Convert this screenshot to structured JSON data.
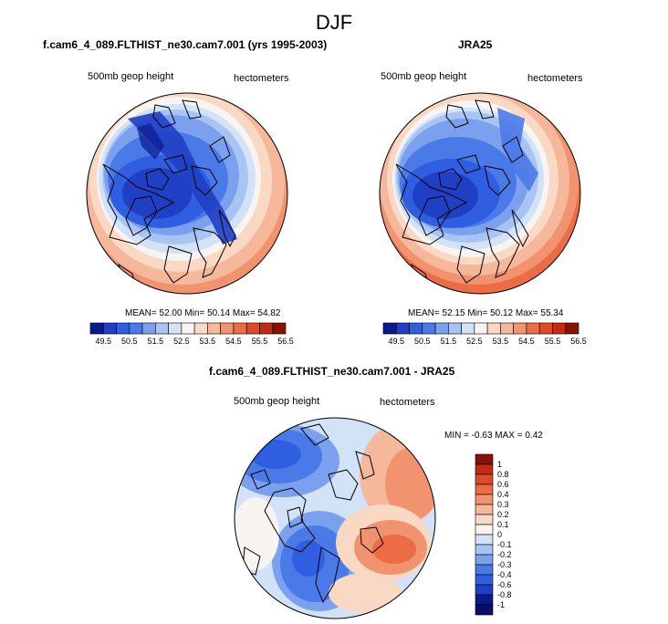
{
  "season": "DJF",
  "panels": [
    {
      "title": "f.cam6_4_089.FLTHIST_ne30.cam7.001 (yrs 1995-2003)",
      "var_label": "500mb geop height",
      "units": "hectometers",
      "stats": {
        "mean_label": "MEAN=",
        "mean": "52.00",
        "min_label": "Min=",
        "min": "50.14",
        "max_label": "Max=",
        "max": "54.82"
      }
    },
    {
      "title": "JRA25",
      "var_label": "500mb geop height",
      "units": "hectometers",
      "stats": {
        "mean_label": "MEAN=",
        "mean": "52.15",
        "min_label": "Min=",
        "min": "50.12",
        "max_label": "Max=",
        "max": "55.34"
      }
    },
    {
      "title": "f.cam6_4_089.FLTHIST_ne30.cam7.001 - JRA25",
      "var_label": "500mb geop height",
      "units": "hectometers",
      "stats_text": "MIN =  -0.63 MAX =   0.42"
    }
  ],
  "colorbar_abs": {
    "ticks": [
      "49.5",
      "50.5",
      "51.5",
      "52.5",
      "53.5",
      "54.5",
      "55.5",
      "56.5"
    ],
    "colors": [
      "#0a1a8c",
      "#1f3fc4",
      "#2f5ee0",
      "#4a7ae8",
      "#7aa0ee",
      "#a8c4f2",
      "#d2e2f7",
      "#f7f4f2",
      "#f9d8c4",
      "#f6b89a",
      "#f29370",
      "#ec6c46",
      "#e04a26",
      "#c42c12",
      "#8a1204"
    ]
  },
  "colorbar_diff": {
    "ticks": [
      "1",
      "0.8",
      "0.6",
      "0.4",
      "0.3",
      "0.2",
      "0.1",
      "0",
      "-0.1",
      "-0.2",
      "-0.3",
      "-0.4",
      "-0.6",
      "-0.8",
      "-1"
    ],
    "colors": [
      "#8a1204",
      "#c42c12",
      "#e04a26",
      "#ec6c46",
      "#f29370",
      "#f6b89a",
      "#f9d8c4",
      "#f7f4f2",
      "#d2e2f7",
      "#a8c4f2",
      "#7aa0ee",
      "#4a7ae8",
      "#2f5ee0",
      "#1f3fc4",
      "#0a1a8c",
      "#071066"
    ]
  }
}
